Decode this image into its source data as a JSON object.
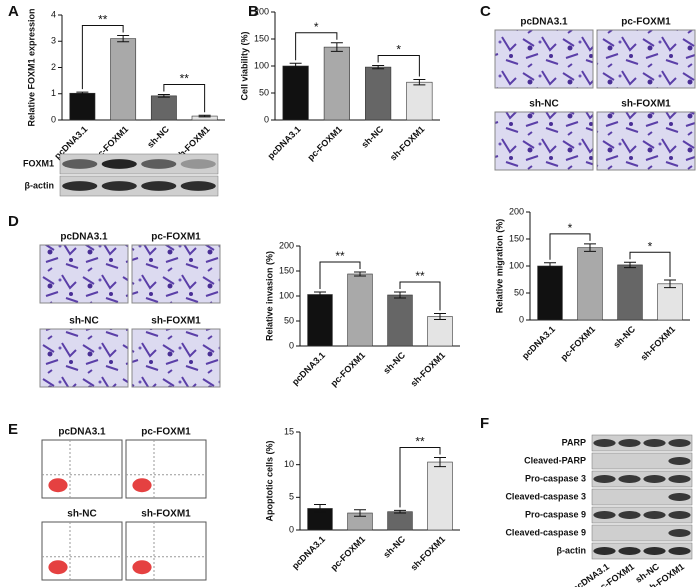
{
  "chart_data": [
    {
      "type": "bar",
      "panel": "A",
      "ylabel": "Relative FOXM1 expression",
      "categories": [
        "pcDNA3.1",
        "pc-FOXM1",
        "sh-NC",
        "sh-FOXM1"
      ],
      "values": [
        1.02,
        3.1,
        0.92,
        0.15
      ],
      "errors": [
        0.04,
        0.12,
        0.05,
        0.03
      ],
      "colors": [
        "#111111",
        "#a9a9a9",
        "#666666",
        "#e4e4e4"
      ],
      "ylim": [
        0,
        4
      ],
      "yticks": [
        0,
        1,
        2,
        3,
        4
      ],
      "annotations": [
        {
          "label": "**",
          "pair": [
            0,
            1
          ]
        },
        {
          "label": "**",
          "pair": [
            2,
            3
          ]
        }
      ]
    },
    {
      "type": "bar",
      "panel": "B",
      "ylabel": "Cell viability (%)",
      "categories": [
        "pcDNA3.1",
        "pc-FOXM1",
        "sh-NC",
        "sh-FOXM1"
      ],
      "values": [
        100,
        135,
        98,
        70
      ],
      "errors": [
        5,
        8,
        3,
        5
      ],
      "colors": [
        "#111111",
        "#a9a9a9",
        "#666666",
        "#e4e4e4"
      ],
      "ylim": [
        0,
        200
      ],
      "yticks": [
        0,
        50,
        100,
        150,
        200
      ],
      "annotations": [
        {
          "label": "*",
          "pair": [
            0,
            1
          ]
        },
        {
          "label": "*",
          "pair": [
            2,
            3
          ]
        }
      ]
    },
    {
      "type": "bar",
      "panel": "C",
      "ylabel": "Relative migration (%)",
      "categories": [
        "pcDNA3.1",
        "pc-FOXM1",
        "sh-NC",
        "sh-FOXM1"
      ],
      "values": [
        100,
        134,
        102,
        67
      ],
      "errors": [
        6,
        7,
        5,
        7
      ],
      "colors": [
        "#111111",
        "#a9a9a9",
        "#666666",
        "#e4e4e4"
      ],
      "ylim": [
        0,
        200
      ],
      "yticks": [
        0,
        50,
        100,
        150,
        200
      ],
      "annotations": [
        {
          "label": "*",
          "pair": [
            0,
            1
          ]
        },
        {
          "label": "*",
          "pair": [
            2,
            3
          ]
        }
      ]
    },
    {
      "type": "bar",
      "panel": "D",
      "ylabel": "Relative invasion (%)",
      "categories": [
        "pcDNA3.1",
        "pc-FOXM1",
        "sh-NC",
        "sh-FOXM1"
      ],
      "values": [
        103,
        144,
        102,
        59
      ],
      "errors": [
        5,
        4,
        6,
        6
      ],
      "colors": [
        "#111111",
        "#a9a9a9",
        "#666666",
        "#e4e4e4"
      ],
      "ylim": [
        0,
        200
      ],
      "yticks": [
        0,
        50,
        100,
        150,
        200
      ],
      "annotations": [
        {
          "label": "**",
          "pair": [
            0,
            1
          ]
        },
        {
          "label": "**",
          "pair": [
            2,
            3
          ]
        }
      ]
    },
    {
      "type": "bar",
      "panel": "E",
      "ylabel": "Apoptotic cells (%)",
      "categories": [
        "pcDNA3.1",
        "pc-FOXM1",
        "sh-NC",
        "sh-FOXM1"
      ],
      "values": [
        3.3,
        2.6,
        2.8,
        10.4
      ],
      "errors": [
        0.6,
        0.5,
        0.2,
        0.7
      ],
      "colors": [
        "#111111",
        "#a9a9a9",
        "#666666",
        "#e4e4e4"
      ],
      "ylim": [
        0,
        15
      ],
      "yticks": [
        0,
        5,
        10,
        15
      ],
      "annotations": [
        {
          "label": "**",
          "pair": [
            2,
            3
          ]
        }
      ]
    }
  ],
  "panel_labels": [
    "A",
    "B",
    "C",
    "D",
    "E",
    "F"
  ],
  "micrographs": {
    "C": [
      "pcDNA3.1",
      "pc-FOXM1",
      "sh-NC",
      "sh-FOXM1"
    ],
    "D": [
      "pcDNA3.1",
      "pc-FOXM1",
      "sh-NC",
      "sh-FOXM1"
    ],
    "E": [
      "pcDNA3.1",
      "pc-FOXM1",
      "sh-NC",
      "sh-FOXM1"
    ]
  },
  "blot_A": {
    "rows": [
      "FOXM1",
      "β-actin"
    ]
  },
  "blot_F": {
    "rows": [
      "PARP",
      "Cleaved-PARP",
      "Pro-caspase 3",
      "Cleaved-caspase 3",
      "Pro-caspase 9",
      "Cleaved-caspase 9",
      "β-actin"
    ],
    "lanes": [
      "pcDNA3.1",
      "pc-FOXM1",
      "sh-NC",
      "sh-FOXM1"
    ]
  }
}
